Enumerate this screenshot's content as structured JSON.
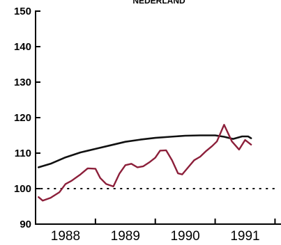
{
  "chart_data": {
    "type": "line",
    "title": "NEDERLAND",
    "xlabel": "",
    "ylabel": "",
    "ylim": [
      90,
      150
    ],
    "xlim": [
      1987.5,
      1991.6
    ],
    "yticks": [
      "150",
      "140",
      "130",
      "120",
      "110",
      "100",
      "90"
    ],
    "xticks": [
      {
        "label": "1988",
        "x": 1988.0
      },
      {
        "label": "1989",
        "x": 1989.0
      },
      {
        "label": "1990",
        "x": 1990.0
      },
      {
        "label": "1991",
        "x": 1991.0
      }
    ],
    "reference_line": {
      "y": 100,
      "style": "dotted"
    },
    "grid": false,
    "series": [
      {
        "color": "#111111",
        "x": [
          1987.55,
          1987.75,
          1988.0,
          1988.25,
          1988.5,
          1988.75,
          1989.0,
          1989.25,
          1989.5,
          1989.75,
          1990.0,
          1990.25,
          1990.5,
          1990.65,
          1990.8,
          1990.95,
          1991.05,
          1991.1
        ],
        "values": [
          106,
          107,
          108.8,
          110.2,
          111.2,
          112.2,
          113.2,
          113.8,
          114.3,
          114.6,
          114.9,
          115,
          115,
          114.6,
          114,
          114.7,
          114.7,
          114.2
        ]
      },
      {
        "color": "#8c1f3a",
        "x": [
          1987.55,
          1987.62,
          1987.75,
          1987.9,
          1988.0,
          1988.1,
          1988.25,
          1988.37,
          1988.5,
          1988.58,
          1988.68,
          1988.8,
          1988.9,
          1989.0,
          1989.1,
          1989.2,
          1989.3,
          1989.4,
          1989.5,
          1989.58,
          1989.68,
          1989.78,
          1989.88,
          1989.95,
          1990.05,
          1990.15,
          1990.25,
          1990.35,
          1990.45,
          1990.53,
          1990.65,
          1990.78,
          1990.9,
          1991.0,
          1991.1
        ],
        "values": [
          97.6,
          96.6,
          97.4,
          99,
          101.3,
          102.2,
          104,
          105.7,
          105.6,
          103,
          101.3,
          100.6,
          104.2,
          106.6,
          107,
          106,
          106.3,
          107.4,
          108.7,
          110.7,
          110.8,
          108,
          104.3,
          104,
          106,
          108,
          109,
          110.6,
          112,
          113.3,
          118,
          113.3,
          111,
          113.7,
          112.4
        ]
      }
    ]
  }
}
